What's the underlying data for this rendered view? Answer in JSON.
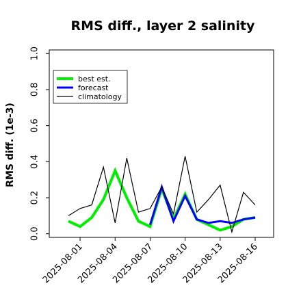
{
  "chart_data": {
    "type": "line",
    "title": "RMS diff., layer 2 salinity",
    "xlabel": "",
    "ylabel": "RMS diff. (1e-3)",
    "ylim": [
      -0.02,
      1.02
    ],
    "yticks": [
      0.0,
      0.2,
      0.4,
      0.6,
      0.8,
      1.0
    ],
    "ytick_labels": [
      "0.0",
      "0.2",
      "0.4",
      "0.6",
      "0.8",
      "1.0"
    ],
    "xtick_labels": [
      "2025-08-01",
      "2025-08-04",
      "2025-08-07",
      "2025-08-10",
      "2025-08-13",
      "2025-08-16"
    ],
    "highlighted_xtick": "2025-08-07",
    "grid": false,
    "legend_position": "top-left",
    "x": [
      "2025-07-31",
      "2025-08-01",
      "2025-08-02",
      "2025-08-03",
      "2025-08-04",
      "2025-08-05",
      "2025-08-06",
      "2025-08-07",
      "2025-08-08",
      "2025-08-09",
      "2025-08-10",
      "2025-08-11",
      "2025-08-12",
      "2025-08-13",
      "2025-08-14",
      "2025-08-15",
      "2025-08-16"
    ],
    "series": [
      {
        "name": "best est.",
        "color": "#00ee00",
        "values": [
          0.07,
          0.04,
          0.09,
          0.19,
          0.35,
          0.2,
          0.07,
          0.04,
          0.25,
          0.08,
          0.22,
          0.08,
          0.05,
          0.02,
          0.04,
          0.08,
          0.09
        ]
      },
      {
        "name": "forecast",
        "color": "#0000ff",
        "values": [
          null,
          null,
          null,
          null,
          null,
          null,
          null,
          0.05,
          0.26,
          0.07,
          0.21,
          0.08,
          0.06,
          0.07,
          0.06,
          0.08,
          0.09
        ]
      },
      {
        "name": "climatology",
        "color": "#000000",
        "values": [
          0.1,
          0.14,
          0.16,
          0.37,
          0.06,
          0.42,
          0.12,
          0.14,
          0.26,
          0.11,
          0.43,
          0.12,
          0.19,
          0.27,
          0.01,
          0.23,
          0.16
        ]
      }
    ]
  }
}
